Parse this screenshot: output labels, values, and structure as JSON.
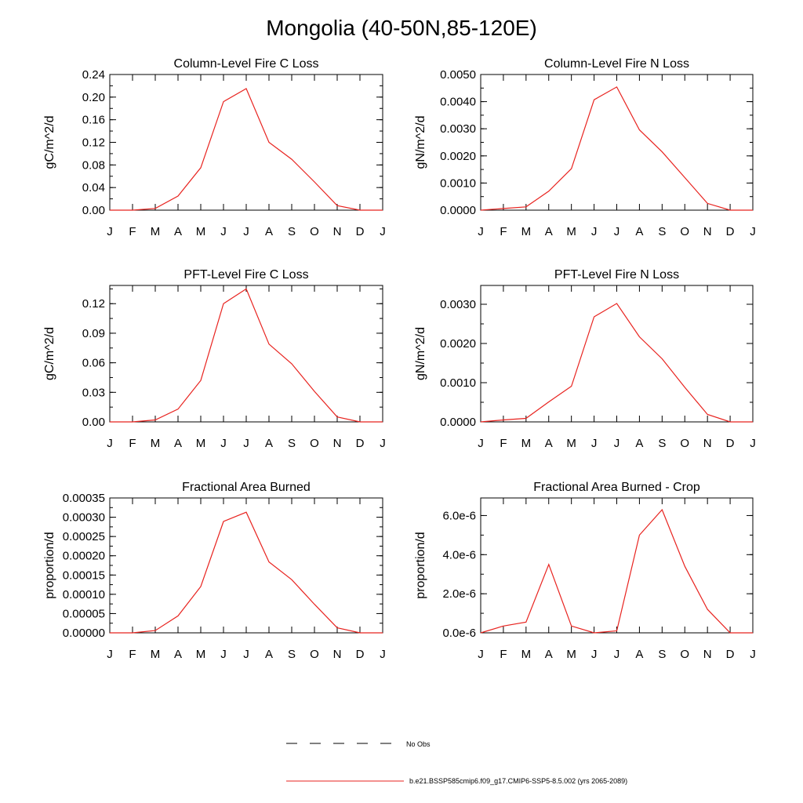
{
  "page_title": "Mongolia (40-50N,85-120E)",
  "colors": {
    "model_line": "#e8231f",
    "obs_line": "#000000",
    "axis": "#000000"
  },
  "legend": [
    {
      "label": "No Obs",
      "style": "dashed",
      "color": "#000000"
    },
    {
      "label": "b.e21.BSSP585cmip6.f09_g17.CMIP6-SSP5-8.5.002 (yrs 2065-2089)",
      "style": "solid",
      "color": "#e8231f"
    }
  ],
  "chart_data": [
    {
      "type": "line",
      "title": "Column-Level Fire C Loss",
      "ylabel": "gC/m^2/d",
      "categories": [
        "J",
        "F",
        "M",
        "A",
        "M",
        "J",
        "J",
        "A",
        "S",
        "O",
        "N",
        "D",
        "J"
      ],
      "ylim": [
        0,
        0.24
      ],
      "yticks": [
        "0.00",
        "0.04",
        "0.08",
        "0.12",
        "0.16",
        "0.20",
        "0.24"
      ],
      "series": [
        {
          "values": [
            0.0,
            0.0,
            0.003,
            0.025,
            0.075,
            0.192,
            0.215,
            0.12,
            0.09,
            0.05,
            0.008,
            0.0,
            0.0
          ]
        }
      ]
    },
    {
      "type": "line",
      "title": "Column-Level Fire N Loss",
      "ylabel": "gN/m^2/d",
      "categories": [
        "J",
        "F",
        "M",
        "A",
        "M",
        "J",
        "J",
        "A",
        "S",
        "O",
        "N",
        "D",
        "J"
      ],
      "ylim": [
        0,
        0.005
      ],
      "yticks": [
        "0.0000",
        "0.0010",
        "0.0020",
        "0.0030",
        "0.0040",
        "0.0050"
      ],
      "series": [
        {
          "values": [
            0.0,
            6e-05,
            0.00012,
            0.0007,
            0.00153,
            0.00407,
            0.00454,
            0.00296,
            0.00215,
            0.0012,
            0.00025,
            0.0,
            0.0
          ]
        }
      ]
    },
    {
      "type": "line",
      "title": "PFT-Level Fire C Loss",
      "ylabel": "gC/m^2/d",
      "categories": [
        "J",
        "F",
        "M",
        "A",
        "M",
        "J",
        "J",
        "A",
        "S",
        "O",
        "N",
        "D",
        "J"
      ],
      "ylim": [
        0,
        0.1385
      ],
      "yticks": [
        "0.00",
        "0.03",
        "0.06",
        "0.09",
        "0.12"
      ],
      "series": [
        {
          "values": [
            0.0,
            0.0,
            0.002,
            0.013,
            0.042,
            0.12,
            0.135,
            0.079,
            0.059,
            0.031,
            0.005,
            0.0,
            0.0
          ]
        }
      ]
    },
    {
      "type": "line",
      "title": "PFT-Level Fire N Loss",
      "ylabel": "gN/m^2/d",
      "categories": [
        "J",
        "F",
        "M",
        "A",
        "M",
        "J",
        "J",
        "A",
        "S",
        "O",
        "N",
        "D",
        "J"
      ],
      "ylim": [
        0,
        0.00348
      ],
      "yticks": [
        "0.0000",
        "0.0010",
        "0.0020",
        "0.0030"
      ],
      "series": [
        {
          "values": [
            0.0,
            5e-05,
            9e-05,
            0.00051,
            0.00091,
            0.00268,
            0.00302,
            0.00217,
            0.00161,
            0.00088,
            0.00019,
            0.0,
            0.0
          ]
        }
      ]
    },
    {
      "type": "line",
      "title": "Fractional Area Burned",
      "ylabel": "proportion/d",
      "categories": [
        "J",
        "F",
        "M",
        "A",
        "M",
        "J",
        "J",
        "A",
        "S",
        "O",
        "N",
        "D",
        "J"
      ],
      "ylim": [
        0,
        0.00035
      ],
      "yticks": [
        "0.00000",
        "0.00005",
        "0.00010",
        "0.00015",
        "0.00020",
        "0.00025",
        "0.00030",
        "0.00035"
      ],
      "series": [
        {
          "values": [
            0.0,
            0.0,
            6e-06,
            4.4e-05,
            0.00012,
            0.000289,
            0.000313,
            0.000184,
            0.000138,
            7.4e-05,
            1.3e-05,
            0.0,
            0.0
          ]
        }
      ]
    },
    {
      "type": "line",
      "title": "Fractional Area Burned - Crop",
      "ylabel": "proportion/d",
      "categories": [
        "J",
        "F",
        "M",
        "A",
        "M",
        "J",
        "J",
        "A",
        "S",
        "O",
        "N",
        "D",
        "J"
      ],
      "ylim": [
        0,
        6.9e-06
      ],
      "yticks": [
        "0.0e-6",
        "2.0e-6",
        "4.0e-6",
        "6.0e-6"
      ],
      "series": [
        {
          "values": [
            0.0,
            3.5e-07,
            5.5e-07,
            3.5e-06,
            3.5e-07,
            0.0,
            1e-07,
            5e-06,
            6.3e-06,
            3.4e-06,
            1.2e-06,
            0.0,
            0.0
          ]
        }
      ]
    }
  ]
}
